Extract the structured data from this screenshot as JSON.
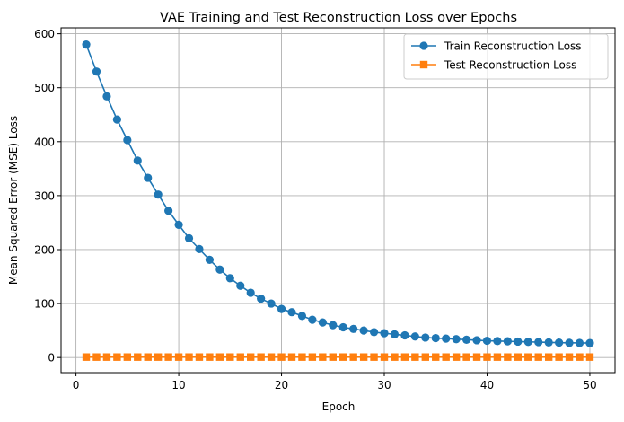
{
  "chart_data": {
    "type": "line",
    "title": "VAE Training and Test Reconstruction Loss over Epochs",
    "xlabel": "Epoch",
    "ylabel": "Mean Squared Error (MSE) Loss",
    "xlim": [
      -1.45,
      52.45
    ],
    "ylim": [
      -28,
      611
    ],
    "xticks": [
      0,
      10,
      20,
      30,
      40,
      50
    ],
    "yticks": [
      0,
      100,
      200,
      300,
      400,
      500,
      600
    ],
    "grid": true,
    "legend_position": "top-right",
    "x": [
      1,
      2,
      3,
      4,
      5,
      6,
      7,
      8,
      9,
      10,
      11,
      12,
      13,
      14,
      15,
      16,
      17,
      18,
      19,
      20,
      21,
      22,
      23,
      24,
      25,
      26,
      27,
      28,
      29,
      30,
      31,
      32,
      33,
      34,
      35,
      36,
      37,
      38,
      39,
      40,
      41,
      42,
      43,
      44,
      45,
      46,
      47,
      48,
      49,
      50
    ],
    "series": [
      {
        "name": "Train Reconstruction Loss",
        "color": "#1f77b4",
        "marker": "circle",
        "values": [
          580,
          530,
          484,
          441,
          403,
          365,
          333,
          302,
          272,
          246,
          221,
          201,
          181,
          163,
          147,
          133,
          120,
          109,
          100,
          90,
          84,
          77,
          70,
          65,
          60,
          56,
          53,
          50,
          47,
          45,
          43,
          41,
          39,
          37,
          36,
          35,
          34,
          33,
          32,
          31,
          30.5,
          30,
          29.5,
          29,
          28.5,
          28,
          27.5,
          27.2,
          27,
          26.8
        ]
      },
      {
        "name": "Test Reconstruction Loss",
        "color": "#ff7f0e",
        "marker": "square",
        "values": [
          0.8,
          0.8,
          0.8,
          0.8,
          0.8,
          0.8,
          0.8,
          0.8,
          0.8,
          0.8,
          0.8,
          0.8,
          0.8,
          0.8,
          0.8,
          0.8,
          0.8,
          0.8,
          0.8,
          0.8,
          0.8,
          0.8,
          0.8,
          0.8,
          0.8,
          0.8,
          0.8,
          0.8,
          0.8,
          0.8,
          0.8,
          0.8,
          0.8,
          0.8,
          0.8,
          0.8,
          0.8,
          0.8,
          0.8,
          0.8,
          0.8,
          0.8,
          0.8,
          0.8,
          0.8,
          0.8,
          0.8,
          0.8,
          0.8,
          0.8
        ]
      }
    ]
  }
}
